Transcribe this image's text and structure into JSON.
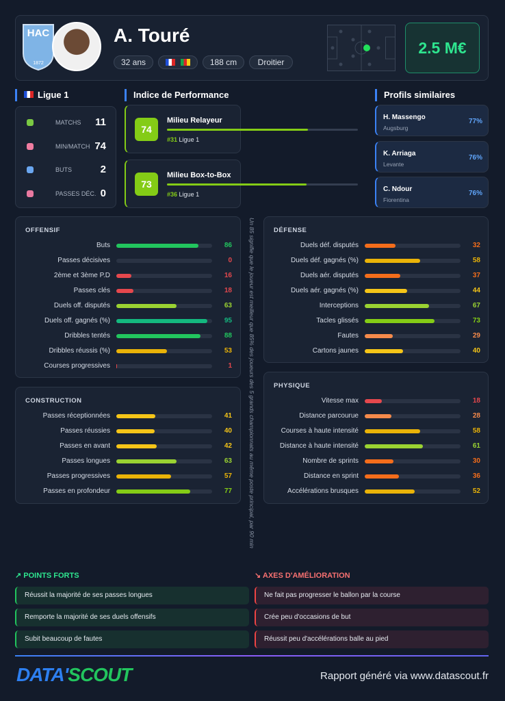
{
  "header": {
    "logo_text": "HAC",
    "logo_year": "1872",
    "name": "A. Touré",
    "tags": [
      "32 ans",
      "188 cm",
      "Droitier"
    ],
    "market_value": "2.5 M€"
  },
  "league_stats": {
    "title": "Ligue 1",
    "rows": [
      {
        "label": "MATCHS",
        "value": 11
      },
      {
        "label": "MIN/MATCH",
        "value": 74
      },
      {
        "label": "BUTS",
        "value": 2
      },
      {
        "label": "PASSES DÉC.",
        "value": 0
      }
    ]
  },
  "performance": {
    "title": "Indice de Performance",
    "cards": [
      {
        "score": 74,
        "role": "Milieu Relayeur",
        "rank": "#31",
        "league": "Ligue 1"
      },
      {
        "score": 73,
        "role": "Milieu Box-to-Box",
        "rank": "#36",
        "league": "Ligue 1"
      }
    ]
  },
  "similar": {
    "title": "Profils similaires",
    "players": [
      {
        "name": "H. Massengo",
        "club": "Augsburg",
        "match": "77%"
      },
      {
        "name": "K. Arriaga",
        "club": "Levante",
        "match": "76%"
      },
      {
        "name": "C. Ndour",
        "club": "Fiorentina",
        "match": "76%"
      }
    ]
  },
  "panels": [
    {
      "title": "OFFENSIF",
      "rows": [
        {
          "label": "Buts",
          "value": 86
        },
        {
          "label": "Passes décisives",
          "value": 0
        },
        {
          "label": "2ème et 3ème P.D",
          "value": 16
        },
        {
          "label": "Passes clés",
          "value": 18
        },
        {
          "label": "Duels off. disputés",
          "value": 63
        },
        {
          "label": "Duels off. gagnés (%)",
          "value": 95
        },
        {
          "label": "Dribbles tentés",
          "value": 88
        },
        {
          "label": "Dribbles réussis (%)",
          "value": 53
        },
        {
          "label": "Courses progressives",
          "value": 1
        }
      ]
    },
    {
      "title": "CONSTRUCTION",
      "rows": [
        {
          "label": "Passes réceptionnées",
          "value": 41
        },
        {
          "label": "Passes réussies",
          "value": 40
        },
        {
          "label": "Passes en avant",
          "value": 42
        },
        {
          "label": "Passes longues",
          "value": 63
        },
        {
          "label": "Passes progressives",
          "value": 57
        },
        {
          "label": "Passes en profondeur",
          "value": 77
        }
      ]
    },
    {
      "title": "DÉFENSE",
      "rows": [
        {
          "label": "Duels déf. disputés",
          "value": 32
        },
        {
          "label": "Duels déf. gagnés (%)",
          "value": 58
        },
        {
          "label": "Duels aér. disputés",
          "value": 37
        },
        {
          "label": "Duels aér. gagnés (%)",
          "value": 44
        },
        {
          "label": "Interceptions",
          "value": 67
        },
        {
          "label": "Tacles glissés",
          "value": 73
        },
        {
          "label": "Fautes",
          "value": 29
        },
        {
          "label": "Cartons jaunes",
          "value": 40
        }
      ]
    },
    {
      "title": "PHYSIQUE",
      "rows": [
        {
          "label": "Vitesse max",
          "value": 18
        },
        {
          "label": "Distance parcourue",
          "value": 28
        },
        {
          "label": "Courses à haute intensité",
          "value": 58
        },
        {
          "label": "Distance à haute intensité",
          "value": 61
        },
        {
          "label": "Nombre de sprints",
          "value": 30
        },
        {
          "label": "Distance en sprint",
          "value": 36
        },
        {
          "label": "Accélérations brusques",
          "value": 52
        }
      ]
    }
  ],
  "note": "Un 85 signifie que le joueur est meilleur que 85% des joueurs des 5 grands championnats au même poste principal, par 90 min",
  "strengths": {
    "title": "POINTS FORTS",
    "items": [
      "Réussit la majorité de ses passes longues",
      "Remporte la majorité de ses duels offensifs",
      "Subit beaucoup de fautes"
    ]
  },
  "improvements": {
    "title": "AXES D'AMÉLIORATION",
    "items": [
      "Ne fait pas progresser le ballon par la course",
      "Crée peu d'occasions de but",
      "Réussit peu d'accélérations balle au pied"
    ]
  },
  "footer": {
    "brand_1": "DATA'",
    "brand_2": "SCOUT",
    "credit": "Rapport généré via www.datascout.fr"
  }
}
